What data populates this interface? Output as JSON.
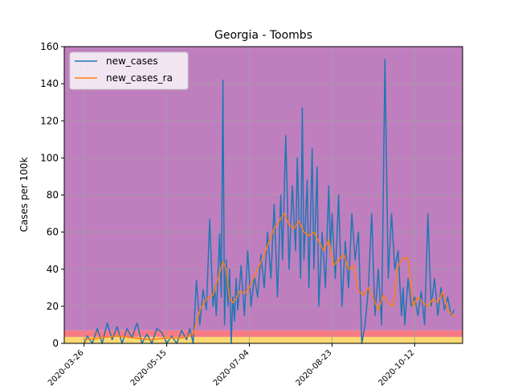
{
  "chart_data": {
    "type": "line",
    "title": "Georgia - Toombs",
    "xlabel": "",
    "ylabel": "Cases per 100k",
    "ylim": [
      0,
      160
    ],
    "yticks": [
      0,
      20,
      40,
      60,
      80,
      100,
      120,
      140,
      160
    ],
    "xlim": [
      "2020-03-14",
      "2020-11-10"
    ],
    "xticks": [
      "2020-03-26",
      "2020-05-15",
      "2020-07-04",
      "2020-08-23",
      "2020-10-12"
    ],
    "xtick_labels": [
      "2020-03-26",
      "2020-05-15",
      "2020-07-04",
      "2020-08-23",
      "2020-10-12"
    ],
    "grid": true,
    "legend_position": "top-left",
    "background_bands": [
      {
        "from": 0,
        "to": 3.5,
        "color": "#fbd872"
      },
      {
        "from": 3.5,
        "to": 7,
        "color": "#f87a84"
      },
      {
        "from": 7,
        "to": 160,
        "color": "#bf7fbf"
      }
    ],
    "series": [
      {
        "name": "new_cases",
        "color": "#1f77b4",
        "x": [
          "2020-03-26",
          "2020-03-28",
          "2020-03-31",
          "2020-04-03",
          "2020-04-06",
          "2020-04-09",
          "2020-04-12",
          "2020-04-15",
          "2020-04-18",
          "2020-04-21",
          "2020-04-24",
          "2020-04-27",
          "2020-04-30",
          "2020-05-03",
          "2020-05-06",
          "2020-05-09",
          "2020-05-12",
          "2020-05-15",
          "2020-05-18",
          "2020-05-21",
          "2020-05-24",
          "2020-05-27",
          "2020-05-29",
          "2020-05-31",
          "2020-06-02",
          "2020-06-04",
          "2020-06-06",
          "2020-06-08",
          "2020-06-10",
          "2020-06-12",
          "2020-06-13",
          "2020-06-14",
          "2020-06-16",
          "2020-06-17",
          "2020-06-18",
          "2020-06-19",
          "2020-06-20",
          "2020-06-21",
          "2020-06-22",
          "2020-06-23",
          "2020-06-24",
          "2020-06-25",
          "2020-06-26",
          "2020-06-27",
          "2020-06-29",
          "2020-07-01",
          "2020-07-03",
          "2020-07-05",
          "2020-07-07",
          "2020-07-09",
          "2020-07-11",
          "2020-07-13",
          "2020-07-15",
          "2020-07-17",
          "2020-07-19",
          "2020-07-21",
          "2020-07-23",
          "2020-07-24",
          "2020-07-26",
          "2020-07-28",
          "2020-07-30",
          "2020-08-01",
          "2020-08-02",
          "2020-08-04",
          "2020-08-05",
          "2020-08-06",
          "2020-08-08",
          "2020-08-09",
          "2020-08-11",
          "2020-08-12",
          "2020-08-14",
          "2020-08-15",
          "2020-08-17",
          "2020-08-19",
          "2020-08-21",
          "2020-08-22",
          "2020-08-23",
          "2020-08-25",
          "2020-08-27",
          "2020-08-29",
          "2020-08-31",
          "2020-09-02",
          "2020-09-04",
          "2020-09-06",
          "2020-09-08",
          "2020-09-10",
          "2020-09-12",
          "2020-09-14",
          "2020-09-16",
          "2020-09-18",
          "2020-09-20",
          "2020-09-22",
          "2020-09-24",
          "2020-09-26",
          "2020-09-28",
          "2020-09-30",
          "2020-10-02",
          "2020-10-04",
          "2020-10-05",
          "2020-10-06",
          "2020-10-08",
          "2020-10-10",
          "2020-10-12",
          "2020-10-14",
          "2020-10-16",
          "2020-10-18",
          "2020-10-20",
          "2020-10-22",
          "2020-10-24",
          "2020-10-26",
          "2020-10-28",
          "2020-10-30",
          "2020-11-01",
          "2020-11-03",
          "2020-11-05"
        ],
        "values": [
          0,
          4,
          0,
          8,
          0,
          11,
          2,
          9,
          0,
          8,
          3,
          11,
          0,
          5,
          0,
          8,
          6,
          0,
          4,
          0,
          7,
          2,
          8,
          0,
          34,
          10,
          29,
          18,
          67,
          20,
          30,
          15,
          59,
          25,
          142,
          10,
          45,
          20,
          40,
          0,
          25,
          12,
          35,
          18,
          42,
          15,
          50,
          20,
          36,
          25,
          48,
          30,
          60,
          35,
          75,
          25,
          80,
          45,
          112,
          40,
          85,
          50,
          100,
          35,
          127,
          45,
          88,
          30,
          105,
          40,
          95,
          20,
          60,
          30,
          85,
          50,
          70,
          35,
          80,
          20,
          55,
          30,
          70,
          45,
          60,
          0,
          10,
          30,
          70,
          15,
          40,
          10,
          153,
          35,
          70,
          40,
          50,
          15,
          30,
          10,
          35,
          20,
          25,
          15,
          28,
          10,
          70,
          20,
          35,
          15,
          30,
          18,
          25,
          15,
          18
        ],
        "values_note_removed": true
      },
      {
        "name": "new_cases_ra",
        "color": "#ff7f0e",
        "x": [
          "2020-03-26",
          "2020-04-05",
          "2020-04-15",
          "2020-04-25",
          "2020-05-05",
          "2020-05-15",
          "2020-05-25",
          "2020-05-31",
          "2020-06-04",
          "2020-06-08",
          "2020-06-12",
          "2020-06-16",
          "2020-06-18",
          "2020-06-20",
          "2020-06-22",
          "2020-06-24",
          "2020-06-26",
          "2020-06-28",
          "2020-07-01",
          "2020-07-04",
          "2020-07-07",
          "2020-07-10",
          "2020-07-13",
          "2020-07-16",
          "2020-07-19",
          "2020-07-22",
          "2020-07-25",
          "2020-07-28",
          "2020-07-31",
          "2020-08-03",
          "2020-08-06",
          "2020-08-09",
          "2020-08-12",
          "2020-08-15",
          "2020-08-18",
          "2020-08-21",
          "2020-08-24",
          "2020-08-27",
          "2020-08-30",
          "2020-09-02",
          "2020-09-05",
          "2020-09-08",
          "2020-09-11",
          "2020-09-14",
          "2020-09-17",
          "2020-09-20",
          "2020-09-23",
          "2020-09-26",
          "2020-09-29",
          "2020-10-02",
          "2020-10-05",
          "2020-10-08",
          "2020-10-11",
          "2020-10-14",
          "2020-10-17",
          "2020-10-20",
          "2020-10-23",
          "2020-10-26",
          "2020-10-29",
          "2020-11-01",
          "2020-11-05"
        ],
        "values": [
          2,
          3,
          4,
          3,
          2,
          3,
          3,
          5,
          18,
          24,
          26,
          38,
          44,
          40,
          24,
          22,
          24,
          28,
          27,
          30,
          36,
          42,
          48,
          55,
          62,
          66,
          70,
          64,
          62,
          66,
          60,
          58,
          60,
          55,
          50,
          56,
          42,
          45,
          48,
          40,
          42,
          28,
          26,
          30,
          24,
          18,
          26,
          22,
          20,
          42,
          46,
          46,
          20,
          25,
          22,
          20,
          24,
          22,
          28,
          18,
          14
        ]
      }
    ]
  }
}
